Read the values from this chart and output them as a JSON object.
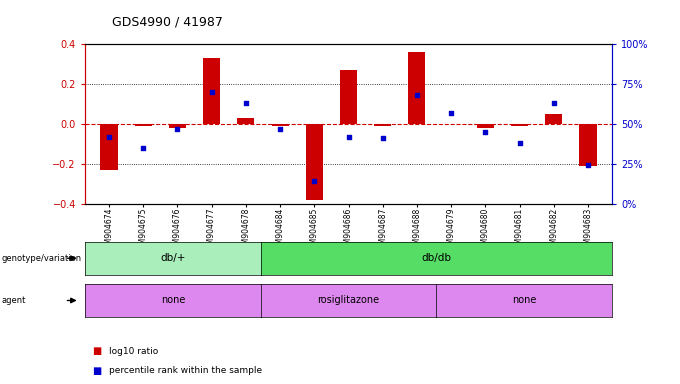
{
  "title": "GDS4990 / 41987",
  "samples": [
    "GSM904674",
    "GSM904675",
    "GSM904676",
    "GSM904677",
    "GSM904678",
    "GSM904684",
    "GSM904685",
    "GSM904686",
    "GSM904687",
    "GSM904688",
    "GSM904679",
    "GSM904680",
    "GSM904681",
    "GSM904682",
    "GSM904683"
  ],
  "log10_ratio": [
    -0.23,
    -0.01,
    -0.02,
    0.33,
    0.03,
    -0.01,
    -0.38,
    0.27,
    -0.01,
    0.36,
    0.0,
    -0.02,
    -0.01,
    0.05,
    -0.21
  ],
  "percentile_rank": [
    42,
    35,
    47,
    70,
    63,
    47,
    14,
    42,
    41,
    68,
    57,
    45,
    38,
    63,
    24
  ],
  "ylim": [
    -0.4,
    0.4
  ],
  "yticks": [
    -0.4,
    -0.2,
    0.0,
    0.2,
    0.4
  ],
  "right_yticks_pct": [
    0,
    25,
    50,
    75,
    100
  ],
  "right_yticklabels": [
    "0%",
    "25%",
    "50%",
    "75%",
    "100%"
  ],
  "bar_color": "#cc0000",
  "dot_color": "#0000cc",
  "hline_color": "#cc0000",
  "genotype_groups": [
    {
      "label": "db/+",
      "start": 0,
      "end": 5,
      "color": "#aaeebb"
    },
    {
      "label": "db/db",
      "start": 5,
      "end": 15,
      "color": "#55dd66"
    }
  ],
  "agent_groups": [
    {
      "label": "none",
      "start": 0,
      "end": 5,
      "color": "#dd88ee"
    },
    {
      "label": "rosiglitazone",
      "start": 5,
      "end": 10,
      "color": "#dd88ee"
    },
    {
      "label": "none",
      "start": 10,
      "end": 15,
      "color": "#dd88ee"
    }
  ],
  "legend_bar_label": "log10 ratio",
  "legend_dot_label": "percentile rank within the sample",
  "background_color": "#ffffff",
  "axis_left_color": "#cc0000",
  "axis_right_color": "#0000cc"
}
